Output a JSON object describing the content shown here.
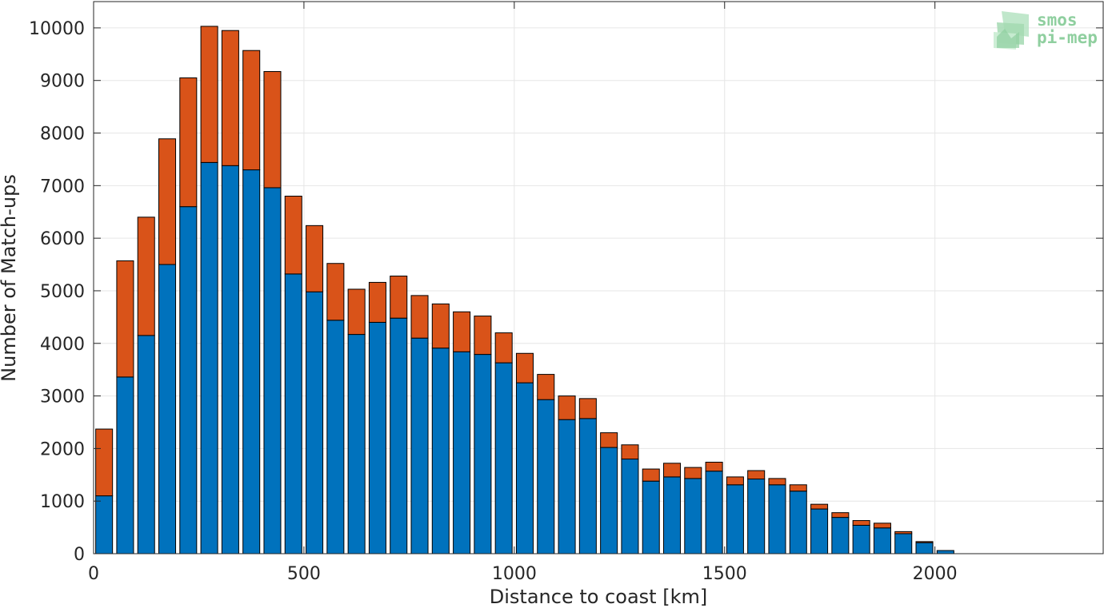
{
  "chart_data": {
    "type": "bar",
    "stacked": true,
    "title": "",
    "xlabel": "Distance to coast [km]",
    "ylabel": "Number of Match-ups",
    "xlim": [
      0,
      2400
    ],
    "ylim": [
      0,
      10500
    ],
    "xticks": [
      0,
      500,
      1000,
      1500,
      2000
    ],
    "yticks": [
      0,
      1000,
      2000,
      3000,
      4000,
      5000,
      6000,
      7000,
      8000,
      9000,
      10000
    ],
    "grid": true,
    "bin_width_km": 50,
    "x": [
      25,
      75,
      125,
      175,
      225,
      275,
      325,
      375,
      425,
      475,
      525,
      575,
      625,
      675,
      725,
      775,
      825,
      875,
      925,
      975,
      1025,
      1075,
      1125,
      1175,
      1225,
      1275,
      1325,
      1375,
      1425,
      1475,
      1525,
      1575,
      1625,
      1675,
      1725,
      1775,
      1825,
      1875,
      1925,
      1975,
      2025,
      2075,
      2125,
      2175,
      2225,
      2275,
      2325,
      2375
    ],
    "series": [
      {
        "color": "#0072BD",
        "values": [
          1100,
          3360,
          4150,
          5500,
          6600,
          7440,
          7380,
          7300,
          6960,
          5320,
          4980,
          4440,
          4170,
          4400,
          4480,
          4100,
          3910,
          3840,
          3790,
          3630,
          3250,
          2930,
          2550,
          2570,
          2020,
          1800,
          1380,
          1460,
          1430,
          1570,
          1310,
          1420,
          1310,
          1190,
          850,
          690,
          540,
          490,
          380,
          210,
          60,
          0,
          0,
          0,
          0,
          0,
          0,
          0
        ]
      },
      {
        "color": "#D95319",
        "values": [
          1270,
          2210,
          2250,
          2390,
          2450,
          2590,
          2570,
          2270,
          2210,
          1480,
          1260,
          1080,
          860,
          760,
          800,
          810,
          840,
          760,
          730,
          570,
          560,
          480,
          450,
          380,
          280,
          270,
          230,
          260,
          210,
          170,
          150,
          160,
          120,
          120,
          90,
          90,
          90,
          90,
          40,
          20,
          0,
          0,
          0,
          0,
          0,
          0,
          0,
          0
        ]
      }
    ]
  },
  "logo": {
    "line1": "smos",
    "line2": "pi-mep",
    "color": "#8fcf9f"
  }
}
